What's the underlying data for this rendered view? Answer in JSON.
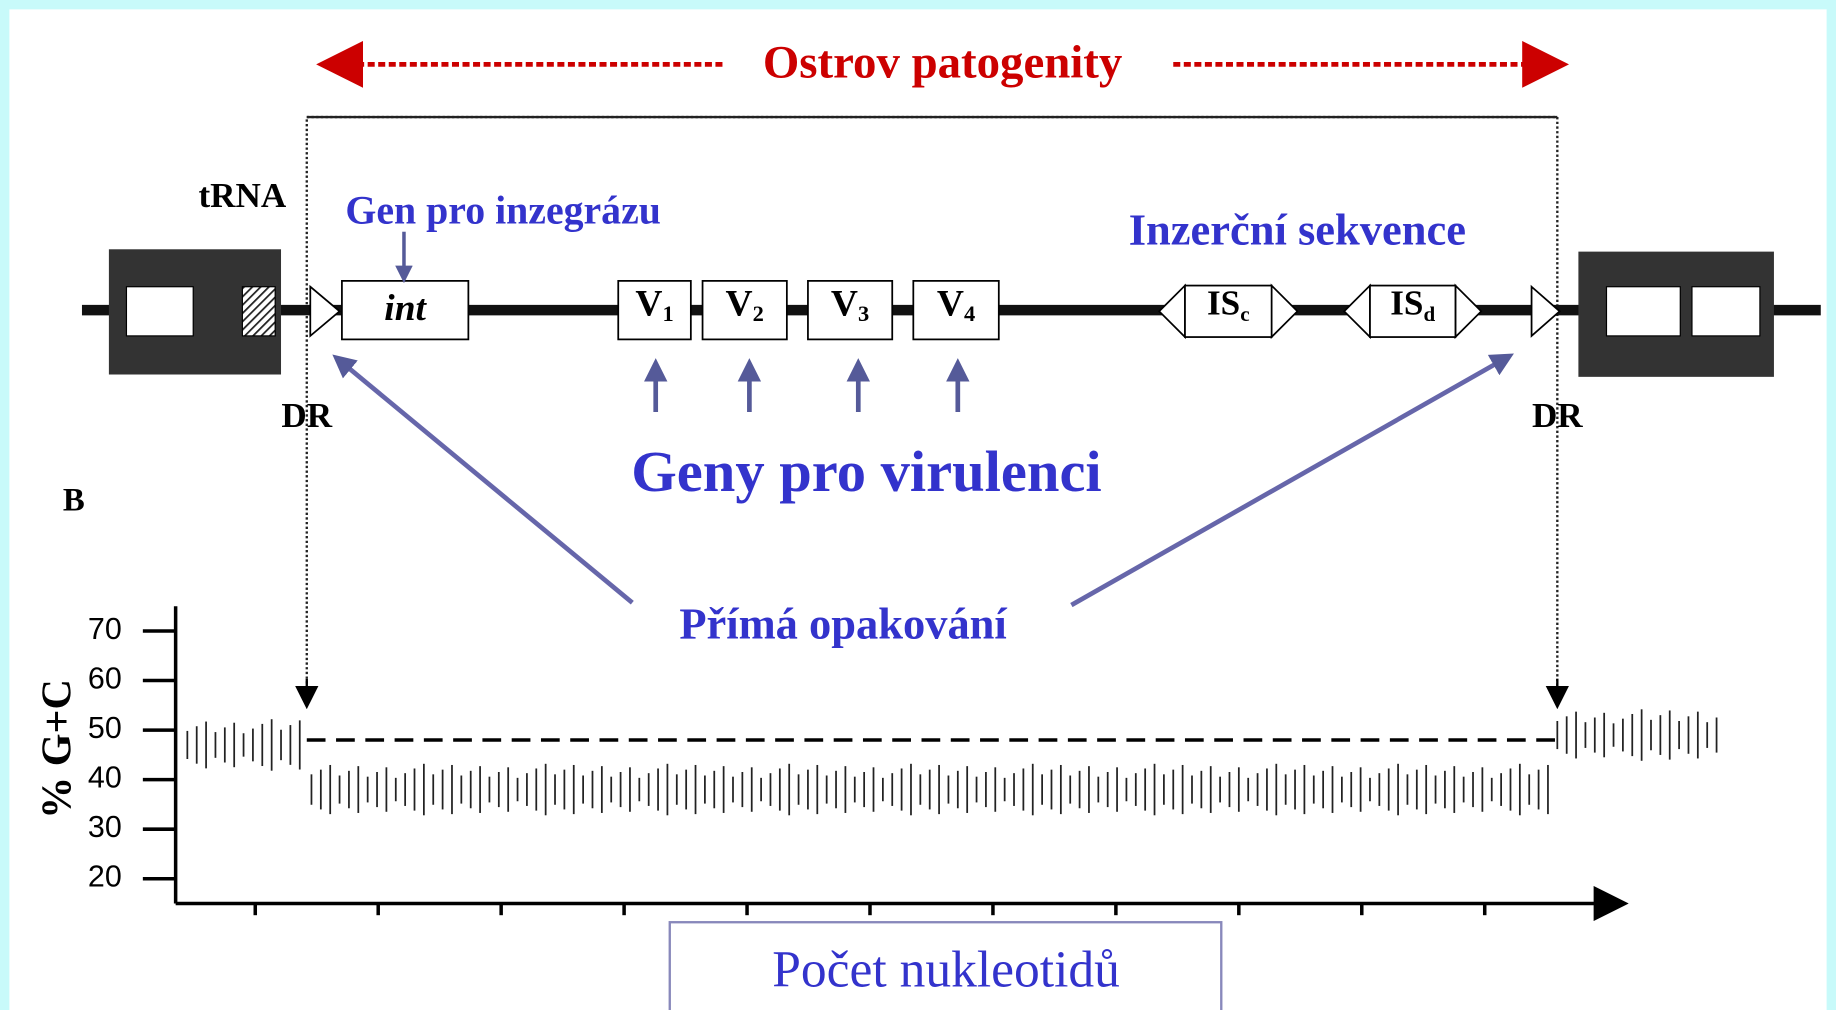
{
  "title": "Ostrov patogenity",
  "trna": "tRNA",
  "integrase_label": "Gen pro inzegrázu",
  "int_gene": "int",
  "virulence_genes": [
    {
      "letter": "V",
      "sub": "1"
    },
    {
      "letter": "V",
      "sub": "2"
    },
    {
      "letter": "V",
      "sub": "3"
    },
    {
      "letter": "V",
      "sub": "4"
    }
  ],
  "insertion_sequences": [
    {
      "letter": "IS",
      "sub": "c"
    },
    {
      "letter": "IS",
      "sub": "d"
    }
  ],
  "insertion_label": "Inzerční sekvence",
  "dr_left": "DR",
  "dr_right": "DR",
  "virulence_label": "Geny pro virulenci",
  "panel_label": "B",
  "repeats_label": "Přímá opakování",
  "plot": {
    "y_label": "% G+C",
    "ylim": [
      15,
      75
    ],
    "yticks": [
      20,
      30,
      40,
      50,
      60,
      70
    ],
    "baseline": 48,
    "segment_means": [
      47,
      38,
      49
    ],
    "x_label": "Počet nukleotidů"
  }
}
